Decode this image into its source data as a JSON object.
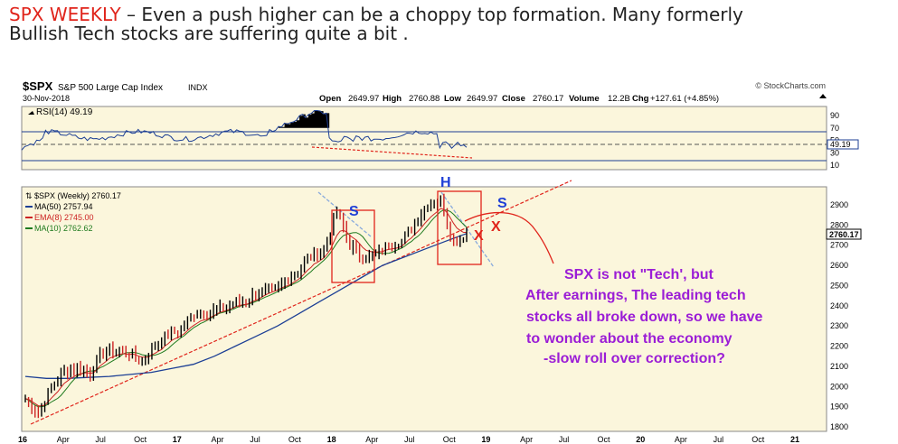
{
  "headline": {
    "ticker": "SPX WEEKLY",
    "text_line1": " – Even a push higher can be a choppy top formation.  Many formerly",
    "text_line2": "Bullish Tech stocks are suffering quite a bit ."
  },
  "chart_header": {
    "symbol": "$SPX",
    "name": "S&P 500 Large Cap Index",
    "exchange": "INDX",
    "date": "30-Nov-2018",
    "source": "© StockCharts.com",
    "ohlc": {
      "open_label": "Open",
      "open": "2649.97",
      "high_label": "High",
      "high": "2760.88",
      "low_label": "Low",
      "low": "2649.97",
      "close_label": "Close",
      "close": "2760.17",
      "volume_label": "Volume",
      "volume": "12.2B",
      "chg_label": "Chg",
      "chg": "+127.61 (+4.85%)"
    }
  },
  "rsi_panel": {
    "label": "RSI(14) 49.19",
    "ticks": [
      "90",
      "70",
      "50",
      "30",
      "10"
    ],
    "current_value": "49.19"
  },
  "legend": {
    "price": "$SPX (Weekly) 2760.17",
    "ma50": "MA(50) 2757.94",
    "ema8": "EMA(8) 2745.00",
    "ma10": "MA(10) 2762.62"
  },
  "colors": {
    "background": "#fbf6dc",
    "price_bars": "#000000",
    "ma50": "#1c3f95",
    "ema8": "#cc2222",
    "ma10": "#1e7a1e",
    "rsi_line": "#1c3f95",
    "annotation_purple": "#9b1dd6",
    "annotation_red": "#e0241b",
    "annotation_blue": "#1f3fd6",
    "trendline_red": "#e0241b",
    "trendline_blue": "#88aadd"
  },
  "annotations": {
    "s_left": "S",
    "h_head": "H",
    "s_right": "S",
    "x_1": "X",
    "x_2": "X",
    "commentary": [
      "SPX is not \"Tech', but",
      "After earnings,  The leading tech",
      "stocks all broke down,  so we have",
      "to wonder about the economy",
      "-slow roll over correction?"
    ]
  },
  "chart_data": {
    "type": "candlestick",
    "title": "$SPX S&P 500 Large Cap Index INDX",
    "frequency": "weekly",
    "x_tick_labels": [
      "16",
      "Apr",
      "Jul",
      "Oct",
      "17",
      "Apr",
      "Jul",
      "Oct",
      "18",
      "Apr",
      "Jul",
      "Oct",
      "19",
      "Apr",
      "Jul",
      "Oct",
      "20",
      "Apr",
      "Jul",
      "Oct",
      "21"
    ],
    "y_tick_labels": [
      "2900",
      "2800",
      "2700",
      "2600",
      "2500",
      "2400",
      "2300",
      "2200",
      "2100",
      "2000",
      "1900",
      "1800"
    ],
    "ylim": [
      1780,
      2960
    ],
    "current_value_label": "2760.17",
    "price_close_approx": [
      {
        "date": "2016-01",
        "value": 1940
      },
      {
        "date": "2016-02",
        "value": 1870
      },
      {
        "date": "2016-03",
        "value": 2000
      },
      {
        "date": "2016-04",
        "value": 2080
      },
      {
        "date": "2016-05",
        "value": 2090
      },
      {
        "date": "2016-06",
        "value": 2070
      },
      {
        "date": "2016-07",
        "value": 2170
      },
      {
        "date": "2016-08",
        "value": 2180
      },
      {
        "date": "2016-09",
        "value": 2160
      },
      {
        "date": "2016-10",
        "value": 2130
      },
      {
        "date": "2016-11",
        "value": 2200
      },
      {
        "date": "2016-12",
        "value": 2260
      },
      {
        "date": "2017-01",
        "value": 2280
      },
      {
        "date": "2017-02",
        "value": 2360
      },
      {
        "date": "2017-03",
        "value": 2365
      },
      {
        "date": "2017-04",
        "value": 2385
      },
      {
        "date": "2017-05",
        "value": 2410
      },
      {
        "date": "2017-06",
        "value": 2425
      },
      {
        "date": "2017-07",
        "value": 2470
      },
      {
        "date": "2017-08",
        "value": 2470
      },
      {
        "date": "2017-09",
        "value": 2520
      },
      {
        "date": "2017-10",
        "value": 2575
      },
      {
        "date": "2017-11",
        "value": 2645
      },
      {
        "date": "2017-12",
        "value": 2675
      },
      {
        "date": "2018-01",
        "value": 2870
      },
      {
        "date": "2018-02",
        "value": 2700
      },
      {
        "date": "2018-03",
        "value": 2640
      },
      {
        "date": "2018-04",
        "value": 2650
      },
      {
        "date": "2018-05",
        "value": 2705
      },
      {
        "date": "2018-06",
        "value": 2720
      },
      {
        "date": "2018-07",
        "value": 2815
      },
      {
        "date": "2018-08",
        "value": 2900
      },
      {
        "date": "2018-09",
        "value": 2925
      },
      {
        "date": "2018-10",
        "value": 2710
      },
      {
        "date": "2018-11",
        "value": 2760
      }
    ],
    "series": [
      {
        "name": "MA(50) 2757.94",
        "values_approx": [
          2050,
          2040,
          2040,
          2045,
          2050,
          2060,
          2070,
          2090,
          2110,
          2150,
          2200,
          2250,
          2300,
          2360,
          2420,
          2480,
          2540,
          2600,
          2640,
          2680,
          2720,
          2757.94
        ]
      },
      {
        "name": "EMA(8) 2745.00",
        "last": 2745.0
      },
      {
        "name": "MA(10) 2762.62",
        "last": 2762.62
      }
    ],
    "rsi": {
      "name": "RSI(14)",
      "last": 49.19,
      "ticks": [
        90,
        70,
        50,
        30,
        10
      ]
    }
  }
}
